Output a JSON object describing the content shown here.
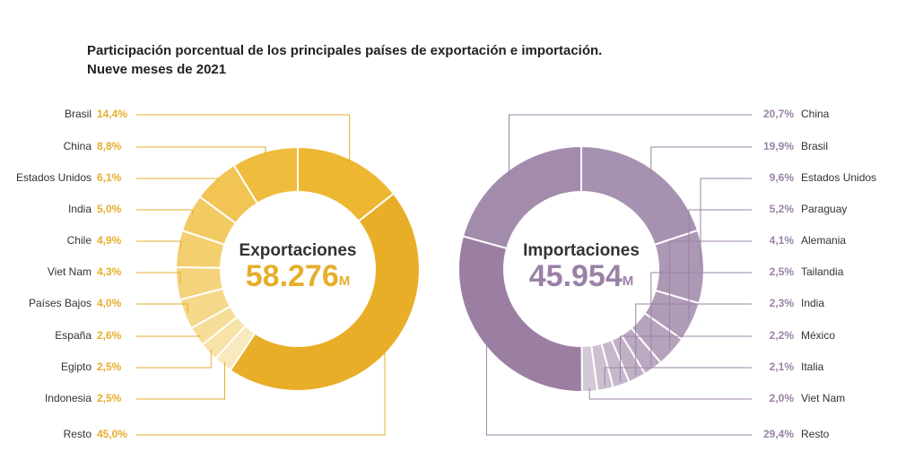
{
  "header": {
    "title": "Participación porcentual de los principales países de exportación e importación.",
    "subtitle": "Nueve meses de 2021"
  },
  "chart_data": [
    {
      "type": "donut",
      "center_title": "Exportaciones",
      "center_value": "58.276",
      "center_unit": "M",
      "label_color": "#E6AE2C",
      "categories": [
        "Brasil",
        "China",
        "Estados Unidos",
        "India",
        "Chile",
        "Viet Nam",
        "Países Bajos",
        "España",
        "Egipto",
        "Indonesia",
        "Resto"
      ],
      "values": [
        14.4,
        8.8,
        6.1,
        5.0,
        4.9,
        4.3,
        4.0,
        2.6,
        2.5,
        2.5,
        45.0
      ],
      "value_labels": [
        "14,4%",
        "8,8%",
        "6,1%",
        "5,0%",
        "4,9%",
        "4,3%",
        "4,0%",
        "2,6%",
        "2,5%",
        "2,5%",
        "45,0%"
      ],
      "colors": [
        "#EDB731",
        "#EFBC3E",
        "#F1C453",
        "#F2CA62",
        "#F3CF6F",
        "#F4D37C",
        "#F5D889",
        "#F6DD98",
        "#F7E2A7",
        "#F9E9BE",
        "#E9AE28"
      ]
    },
    {
      "type": "donut",
      "center_title": "Importaciones",
      "center_value": "45.954",
      "center_unit": "M",
      "label_color": "#9A82A6",
      "categories": [
        "China",
        "Brasil",
        "Estados Unidos",
        "Paraguay",
        "Alemania",
        "Tailandia",
        "India",
        "México",
        "Italia",
        "Viet Nam",
        "Resto"
      ],
      "values": [
        20.7,
        19.9,
        9.6,
        5.2,
        4.1,
        2.5,
        2.3,
        2.2,
        2.1,
        2.0,
        29.4
      ],
      "value_labels": [
        "20,7%",
        "19,9%",
        "9,6%",
        "5,2%",
        "4,1%",
        "2,5%",
        "2,3%",
        "2,2%",
        "2,1%",
        "2,0%",
        "29,4%"
      ],
      "colors": [
        "#A38BAC",
        "#A791B0",
        "#AC97B4",
        "#B09CB7",
        "#B5A3BC",
        "#BBA9C1",
        "#C0B0C5",
        "#C6B8CB",
        "#CCBFD0",
        "#D3C8D6",
        "#9B7FA2"
      ]
    }
  ]
}
